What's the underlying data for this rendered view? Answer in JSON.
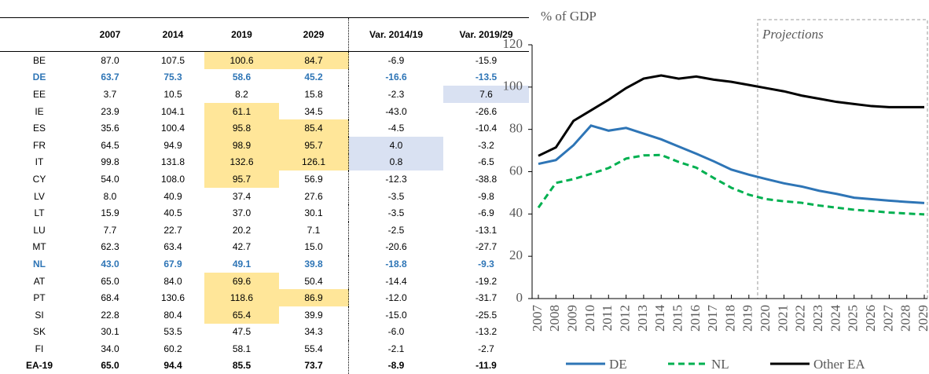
{
  "table": {
    "columns": [
      "",
      "2007",
      "2014",
      "2019",
      "2029",
      "Var. 2014/19",
      "Var. 2019/29"
    ],
    "fill_colors": {
      "y": "#ffe699",
      "b": "#d9e1f2"
    },
    "rows": [
      {
        "cells": [
          "BE",
          "87.0",
          "107.5",
          "100.6",
          "84.7",
          "-6.9",
          "-15.9"
        ],
        "fills": {
          "3": "y",
          "4": "y"
        }
      },
      {
        "cells": [
          "DE",
          "63.7",
          "75.3",
          "58.6",
          "45.2",
          "-16.6",
          "-13.5"
        ],
        "style": "blue"
      },
      {
        "cells": [
          "EE",
          "3.7",
          "10.5",
          "8.2",
          "15.8",
          "-2.3",
          "7.6"
        ],
        "fills": {
          "6": "b"
        }
      },
      {
        "cells": [
          "IE",
          "23.9",
          "104.1",
          "61.1",
          "34.5",
          "-43.0",
          "-26.6"
        ],
        "fills": {
          "3": "y"
        }
      },
      {
        "cells": [
          "ES",
          "35.6",
          "100.4",
          "95.8",
          "85.4",
          "-4.5",
          "-10.4"
        ],
        "fills": {
          "3": "y",
          "4": "y"
        }
      },
      {
        "cells": [
          "FR",
          "64.5",
          "94.9",
          "98.9",
          "95.7",
          "4.0",
          "-3.2"
        ],
        "fills": {
          "3": "y",
          "4": "y",
          "5": "b"
        }
      },
      {
        "cells": [
          "IT",
          "99.8",
          "131.8",
          "132.6",
          "126.1",
          "0.8",
          "-6.5"
        ],
        "fills": {
          "3": "y",
          "4": "y",
          "5": "b"
        }
      },
      {
        "cells": [
          "CY",
          "54.0",
          "108.0",
          "95.7",
          "56.9",
          "-12.3",
          "-38.8"
        ],
        "fills": {
          "3": "y"
        }
      },
      {
        "cells": [
          "LV",
          "8.0",
          "40.9",
          "37.4",
          "27.6",
          "-3.5",
          "-9.8"
        ]
      },
      {
        "cells": [
          "LT",
          "15.9",
          "40.5",
          "37.0",
          "30.1",
          "-3.5",
          "-6.9"
        ]
      },
      {
        "cells": [
          "LU",
          "7.7",
          "22.7",
          "20.2",
          "7.1",
          "-2.5",
          "-13.1"
        ]
      },
      {
        "cells": [
          "MT",
          "62.3",
          "63.4",
          "42.7",
          "15.0",
          "-20.6",
          "-27.7"
        ]
      },
      {
        "cells": [
          "NL",
          "43.0",
          "67.9",
          "49.1",
          "39.8",
          "-18.8",
          "-9.3"
        ],
        "style": "blue"
      },
      {
        "cells": [
          "AT",
          "65.0",
          "84.0",
          "69.6",
          "50.4",
          "-14.4",
          "-19.2"
        ],
        "fills": {
          "3": "y"
        }
      },
      {
        "cells": [
          "PT",
          "68.4",
          "130.6",
          "118.6",
          "86.9",
          "-12.0",
          "-31.7"
        ],
        "fills": {
          "3": "y",
          "4": "y"
        }
      },
      {
        "cells": [
          "SI",
          "22.8",
          "80.4",
          "65.4",
          "39.9",
          "-15.0",
          "-25.5"
        ],
        "fills": {
          "3": "y"
        }
      },
      {
        "cells": [
          "SK",
          "30.1",
          "53.5",
          "47.5",
          "34.3",
          "-6.0",
          "-13.2"
        ]
      },
      {
        "cells": [
          "FI",
          "34.0",
          "60.2",
          "58.1",
          "55.4",
          "-2.1",
          "-2.7"
        ]
      },
      {
        "cells": [
          "EA-19",
          "65.0",
          "94.4",
          "85.5",
          "73.7",
          "-8.9",
          "-11.9"
        ],
        "style": "bold"
      }
    ]
  },
  "chart_data": {
    "type": "line",
    "y_label": "% of GDP",
    "annotation": "Projections",
    "projection_start": 2020,
    "x": [
      2007,
      2008,
      2009,
      2010,
      2011,
      2012,
      2013,
      2014,
      2015,
      2016,
      2017,
      2018,
      2019,
      2020,
      2021,
      2022,
      2023,
      2024,
      2025,
      2026,
      2027,
      2028,
      2029
    ],
    "xlim": [
      2007,
      2029
    ],
    "ylim": [
      0,
      120
    ],
    "yticks": [
      0,
      20,
      40,
      60,
      80,
      100,
      120
    ],
    "series": [
      {
        "name": "DE",
        "color": "#2e75b6",
        "dash": "solid",
        "values": [
          63.7,
          65.5,
          72.5,
          81.8,
          79.4,
          80.7,
          78,
          75.3,
          71.9,
          68.5,
          64.9,
          61.0,
          58.6,
          56.5,
          54.5,
          53,
          51,
          49.5,
          47.7,
          47,
          46.3,
          45.7,
          45.2
        ]
      },
      {
        "name": "NL",
        "color": "#00b050",
        "dash": "dashed",
        "values": [
          43.0,
          54.7,
          56.5,
          59.0,
          61.7,
          66.2,
          67.7,
          67.9,
          64.6,
          61.9,
          57.0,
          52.4,
          49.1,
          47,
          46,
          45.3,
          44,
          43,
          42,
          41.4,
          40.7,
          40.2,
          39.8
        ]
      },
      {
        "name": "Other EA",
        "color": "#000000",
        "dash": "solid",
        "values": [
          67.5,
          71.5,
          84,
          89,
          94,
          99.5,
          104,
          105.5,
          104,
          105,
          103.5,
          102.5,
          101,
          99.5,
          98,
          96,
          94.5,
          93,
          92,
          91,
          90.5,
          90.5,
          90.5
        ]
      }
    ]
  }
}
